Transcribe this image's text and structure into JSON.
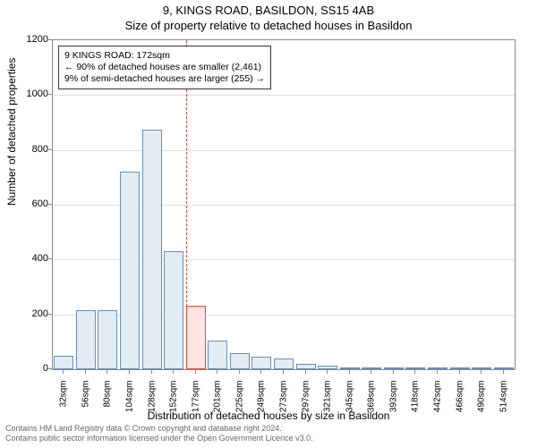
{
  "title": "9, KINGS ROAD, BASILDON, SS15 4AB",
  "subtitle": "Size of property relative to detached houses in Basildon",
  "chart": {
    "type": "histogram",
    "xlabel": "Distribution of detached houses by size in Basildon",
    "ylabel": "Number of detached properties",
    "ylim": [
      0,
      1200
    ],
    "ytick_step": 200,
    "yticks": [
      0,
      200,
      400,
      600,
      800,
      1000,
      1200
    ],
    "xtick_labels": [
      "32sqm",
      "56sqm",
      "80sqm",
      "104sqm",
      "128sqm",
      "152sqm",
      "177sqm",
      "201sqm",
      "225sqm",
      "249sqm",
      "273sqm",
      "297sqm",
      "321sqm",
      "345sqm",
      "369sqm",
      "393sqm",
      "418sqm",
      "442sqm",
      "466sqm",
      "490sqm",
      "514sqm"
    ],
    "bars": [
      {
        "x_index": 0,
        "value": 50
      },
      {
        "x_index": 1,
        "value": 215
      },
      {
        "x_index": 2,
        "value": 215
      },
      {
        "x_index": 3,
        "value": 720
      },
      {
        "x_index": 4,
        "value": 875
      },
      {
        "x_index": 5,
        "value": 430
      },
      {
        "x_index": 6,
        "value": 230
      },
      {
        "x_index": 7,
        "value": 105
      },
      {
        "x_index": 8,
        "value": 60
      },
      {
        "x_index": 9,
        "value": 45
      },
      {
        "x_index": 10,
        "value": 40
      },
      {
        "x_index": 11,
        "value": 20
      },
      {
        "x_index": 12,
        "value": 12
      },
      {
        "x_index": 13,
        "value": 5
      },
      {
        "x_index": 14,
        "value": 4
      },
      {
        "x_index": 15,
        "value": 3
      },
      {
        "x_index": 16,
        "value": 2
      },
      {
        "x_index": 17,
        "value": 2
      },
      {
        "x_index": 18,
        "value": 1
      },
      {
        "x_index": 19,
        "value": 1
      },
      {
        "x_index": 20,
        "value": 1
      }
    ],
    "bar_fill": "#e3ecf5",
    "bar_border": "#6a8fb5",
    "highlight_bar_index": 6,
    "highlight_fill": "#fce5e3",
    "highlight_border": "#e74c3c",
    "reference_line_index": 6,
    "reference_line_color": "#e74c3c",
    "background_color": "#ffffff",
    "grid_color": "#dddddd",
    "axis_color": "#888888",
    "bar_width_ratio": 0.9,
    "label_fontsize": 12,
    "tick_fontsize": 11
  },
  "annotation": {
    "lines": [
      "9 KINGS ROAD: 172sqm",
      "← 90% of detached houses are smaller (2,461)",
      "9% of semi-detached houses are larger (255) →"
    ],
    "border_color": "#333333",
    "background": "#ffffff",
    "fontsize": 10.5
  },
  "footer": {
    "line1": "Contains HM Land Registry data © Crown copyright and database right 2024.",
    "line2": "Contains public sector information licensed under the Open Government Licence v3.0."
  }
}
